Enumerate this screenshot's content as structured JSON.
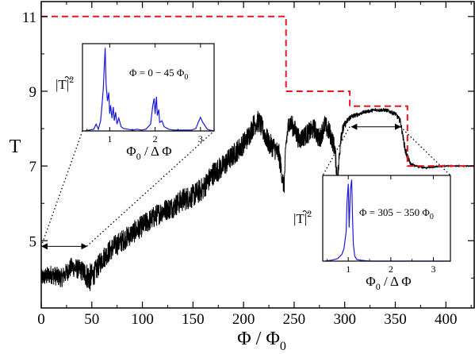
{
  "chart_data": [
    {
      "type": "line",
      "xlabel": "Φ / Φ",
      "xlabel_sub": "0",
      "ylabel": "T",
      "xlim": [
        0,
        428
      ],
      "ylim": [
        3.2,
        11.4
      ],
      "x_ticks": [
        0,
        50,
        100,
        150,
        200,
        250,
        300,
        350,
        400
      ],
      "y_ticks": [
        5,
        7,
        9,
        11
      ],
      "grid": false,
      "series": [
        {
          "style": "noisy-line",
          "color": "#000000",
          "x": [
            0,
            10,
            20,
            30,
            40,
            48,
            52,
            60,
            70,
            80,
            90,
            100,
            110,
            120,
            130,
            140,
            150,
            160,
            170,
            180,
            190,
            200,
            205,
            210,
            215,
            220,
            225,
            230,
            235,
            240,
            242,
            245,
            250,
            255,
            260,
            265,
            270,
            275,
            280,
            285,
            290,
            293,
            296,
            300,
            305,
            310,
            320,
            330,
            340,
            350,
            355,
            360,
            365,
            370,
            380,
            390,
            400,
            410,
            428
          ],
          "y": [
            4.0,
            4.1,
            4.0,
            4.3,
            4.2,
            4.0,
            4.1,
            4.5,
            4.8,
            5.0,
            5.2,
            5.4,
            5.6,
            5.8,
            5.9,
            6.1,
            6.2,
            6.4,
            6.8,
            7.0,
            7.3,
            7.6,
            7.8,
            8.1,
            8.2,
            7.9,
            7.6,
            7.5,
            7.3,
            6.4,
            7.6,
            8.2,
            8.0,
            7.7,
            7.8,
            7.9,
            8.0,
            7.7,
            8.1,
            7.9,
            7.5,
            6.6,
            7.8,
            8.1,
            8.3,
            8.35,
            8.45,
            8.5,
            8.5,
            8.4,
            8.2,
            7.4,
            7.05,
            7.0,
            6.95,
            6.98,
            7.0,
            7.0,
            7.0
          ],
          "noise": [
            0.24,
            0.26,
            0.26,
            0.26,
            0.28,
            0.4,
            0.3,
            0.3,
            0.3,
            0.3,
            0.3,
            0.3,
            0.3,
            0.3,
            0.3,
            0.32,
            0.32,
            0.32,
            0.32,
            0.32,
            0.3,
            0.3,
            0.3,
            0.3,
            0.3,
            0.3,
            0.3,
            0.3,
            0.3,
            0.25,
            0.3,
            0.28,
            0.28,
            0.28,
            0.28,
            0.28,
            0.28,
            0.28,
            0.28,
            0.28,
            0.25,
            0.3,
            0.25,
            0.1,
            0.08,
            0.06,
            0.05,
            0.05,
            0.05,
            0.06,
            0.08,
            0.12,
            0.05,
            0.03,
            0.02,
            0.02,
            0.01,
            0.01,
            0.01
          ]
        },
        {
          "style": "dashed-step",
          "color": "#e8161b",
          "x": [
            0,
            242,
            242,
            305,
            305,
            362,
            362,
            428
          ],
          "y": [
            11,
            11,
            9,
            9,
            8.6,
            8.6,
            7.0,
            7.0
          ]
        }
      ],
      "arrows": [
        {
          "x1": 0,
          "x2": 45,
          "y": 4.85
        },
        {
          "x1": 306,
          "x2": 355,
          "y": 8.05
        }
      ]
    },
    {
      "type": "line",
      "name": "inset-top",
      "annotation": "Φ = 0 − 45 Φ",
      "annotation_sub": "0",
      "xlabel": "Φ",
      "xlabel_sub": "0",
      "xlabel_rest": " / Δ Φ",
      "ylabel": "|T|",
      "ylabel_sup": "2",
      "xlim": [
        0.4,
        3.3
      ],
      "x_ticks": [
        1,
        2,
        3
      ],
      "color": "#1a1adb",
      "x": [
        0.45,
        0.55,
        0.65,
        0.7,
        0.75,
        0.8,
        0.83,
        0.86,
        0.88,
        0.9,
        0.92,
        0.95,
        0.98,
        1.0,
        1.02,
        1.05,
        1.08,
        1.1,
        1.13,
        1.16,
        1.2,
        1.25,
        1.3,
        1.4,
        1.5,
        1.6,
        1.7,
        1.8,
        1.9,
        1.95,
        1.98,
        2.0,
        2.03,
        2.05,
        2.08,
        2.1,
        2.15,
        2.2,
        2.3,
        2.4,
        2.5,
        2.6,
        2.7,
        2.8,
        2.9,
        2.95,
        3.0,
        3.05,
        3.1,
        3.15,
        3.2,
        3.3
      ],
      "y": [
        0.0,
        0.01,
        0.02,
        0.08,
        0.02,
        0.12,
        0.3,
        0.5,
        0.75,
        0.97,
        0.55,
        0.35,
        0.45,
        0.2,
        0.3,
        0.15,
        0.28,
        0.12,
        0.22,
        0.08,
        0.15,
        0.05,
        0.03,
        0.02,
        0.01,
        0.02,
        0.01,
        0.02,
        0.08,
        0.3,
        0.38,
        0.2,
        0.4,
        0.18,
        0.25,
        0.1,
        0.12,
        0.05,
        0.02,
        0.01,
        0.01,
        0.01,
        0.01,
        0.01,
        0.03,
        0.1,
        0.16,
        0.1,
        0.06,
        0.02,
        0.01,
        0.0
      ]
    },
    {
      "type": "line",
      "name": "inset-bottom",
      "annotation": "Φ = 305 − 350 Φ",
      "annotation_sub": "0",
      "xlabel": "Φ",
      "xlabel_sub": "0",
      "xlabel_rest": " / Δ Φ",
      "ylabel": "|T|",
      "ylabel_sup": "2",
      "xlim": [
        0.4,
        3.4
      ],
      "x_ticks": [
        1,
        2,
        3
      ],
      "color": "#1a1adb",
      "x": [
        0.45,
        0.6,
        0.75,
        0.85,
        0.9,
        0.95,
        0.97,
        1.0,
        1.02,
        1.05,
        1.08,
        1.1,
        1.12,
        1.15,
        1.2,
        1.3,
        1.5,
        2.0,
        2.5,
        3.0,
        3.4
      ],
      "y": [
        0.0,
        0.01,
        0.03,
        0.08,
        0.15,
        0.35,
        0.7,
        0.92,
        0.4,
        0.85,
        0.97,
        0.5,
        0.2,
        0.06,
        0.02,
        0.01,
        0.0,
        0.0,
        0.0,
        0.0,
        0.0
      ]
    }
  ]
}
